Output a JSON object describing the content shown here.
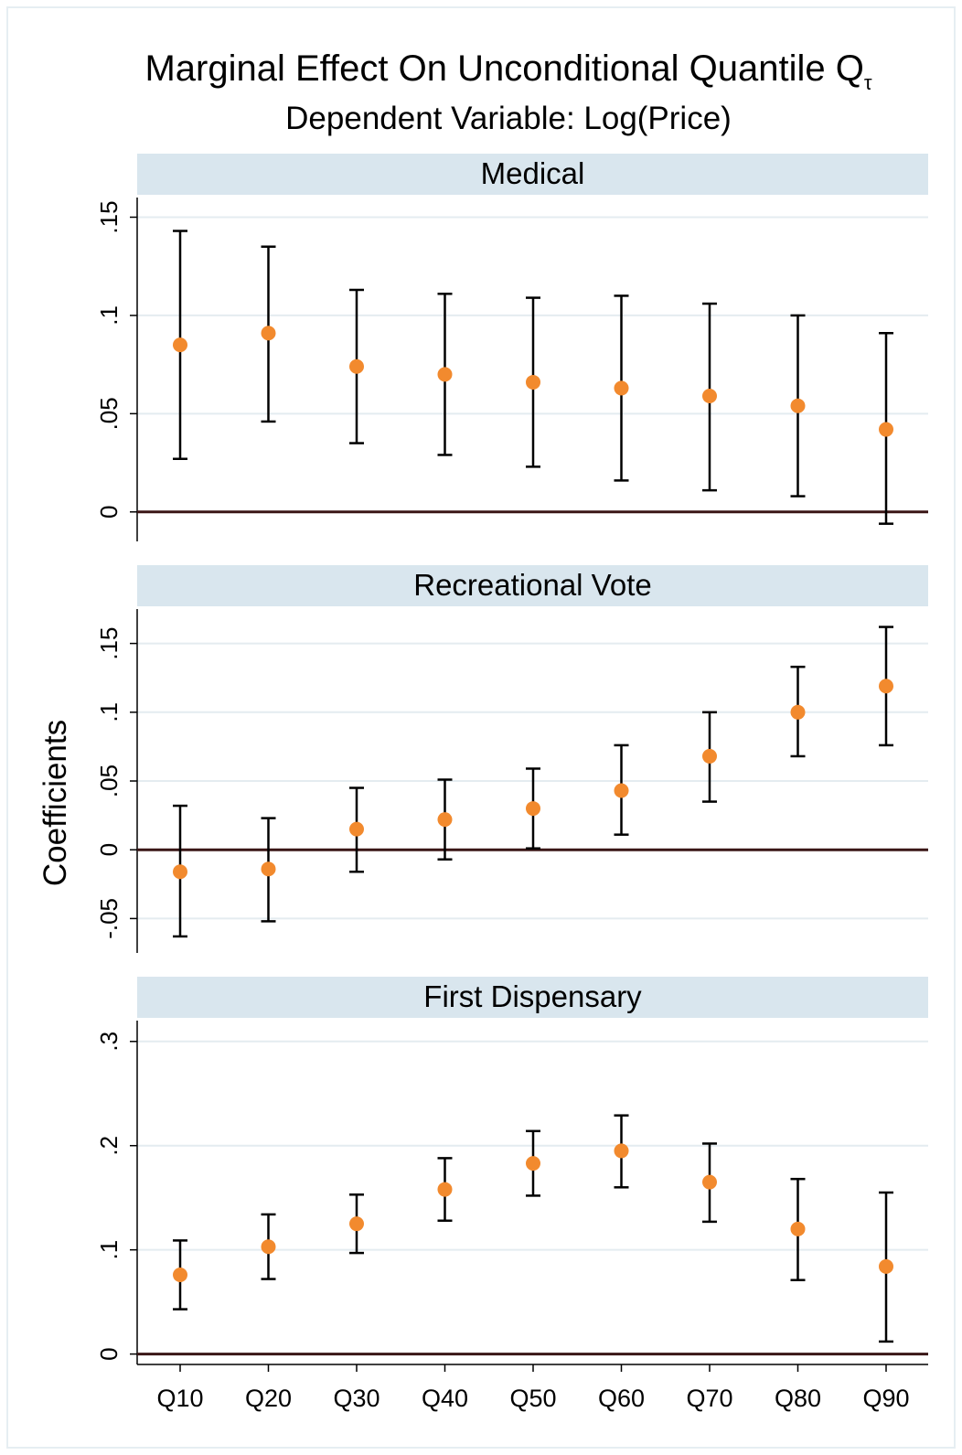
{
  "title_main": "Marginal Effect On Unconditional Quantile Q",
  "title_sub_tau": "τ",
  "subtitle": "Dependent Variable: Log(Price)",
  "colors": {
    "point": "#f28a2e",
    "strip": "#d9e6ee",
    "zero_line": "#3a1616",
    "grid": "#e4ecf0",
    "frame": "#e6eef2"
  },
  "chart_data": {
    "type": "scatter",
    "ylabel": "Coefficients",
    "categories": [
      "Q10",
      "Q20",
      "Q30",
      "Q40",
      "Q50",
      "Q60",
      "Q70",
      "Q80",
      "Q90"
    ],
    "panels": [
      {
        "title": "Medical",
        "ylim": [
          -0.015,
          0.16
        ],
        "yticks": [
          {
            "v": 0,
            "label": "0"
          },
          {
            "v": 0.05,
            "label": ".05"
          },
          {
            "v": 0.1,
            "label": ".1"
          },
          {
            "v": 0.15,
            "label": ".15"
          }
        ],
        "values": [
          0.085,
          0.091,
          0.074,
          0.07,
          0.066,
          0.063,
          0.059,
          0.054,
          0.042
        ],
        "ci_low": [
          0.027,
          0.046,
          0.035,
          0.029,
          0.023,
          0.016,
          0.011,
          0.008,
          -0.006
        ],
        "ci_high": [
          0.143,
          0.135,
          0.113,
          0.111,
          0.109,
          0.11,
          0.106,
          0.1,
          0.091
        ]
      },
      {
        "title": "Recreational Vote",
        "ylim": [
          -0.075,
          0.175
        ],
        "yticks": [
          {
            "v": -0.05,
            "label": "-.05"
          },
          {
            "v": 0,
            "label": "0"
          },
          {
            "v": 0.05,
            "label": ".05"
          },
          {
            "v": 0.1,
            "label": ".1"
          },
          {
            "v": 0.15,
            "label": ".15"
          }
        ],
        "values": [
          -0.016,
          -0.014,
          0.015,
          0.022,
          0.03,
          0.043,
          0.068,
          0.1,
          0.119
        ],
        "ci_low": [
          -0.063,
          -0.052,
          -0.016,
          -0.007,
          0.001,
          0.011,
          0.035,
          0.068,
          0.076
        ],
        "ci_high": [
          0.032,
          0.023,
          0.045,
          0.051,
          0.059,
          0.076,
          0.1,
          0.133,
          0.162
        ]
      },
      {
        "title": "First Dispensary",
        "ylim": [
          -0.01,
          0.32
        ],
        "yticks": [
          {
            "v": 0,
            "label": "0"
          },
          {
            "v": 0.1,
            "label": ".1"
          },
          {
            "v": 0.2,
            "label": ".2"
          },
          {
            "v": 0.3,
            "label": ".3"
          }
        ],
        "values": [
          0.076,
          0.103,
          0.125,
          0.158,
          0.183,
          0.195,
          0.165,
          0.12,
          0.084
        ],
        "ci_low": [
          0.043,
          0.072,
          0.097,
          0.128,
          0.152,
          0.16,
          0.127,
          0.071,
          0.012
        ],
        "ci_high": [
          0.109,
          0.134,
          0.153,
          0.188,
          0.214,
          0.229,
          0.202,
          0.168,
          0.155
        ]
      }
    ]
  }
}
